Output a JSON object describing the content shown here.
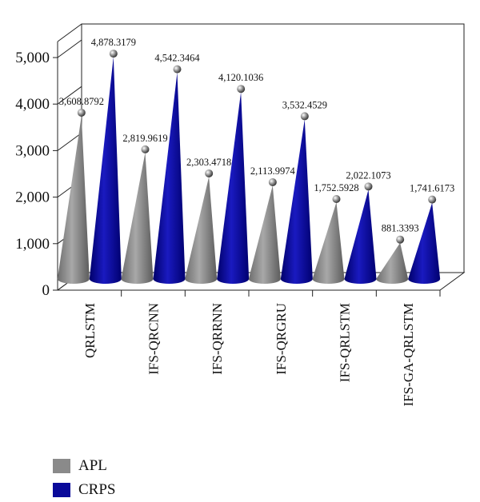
{
  "chart_data": {
    "type": "bar",
    "title": "",
    "xlabel": "",
    "ylabel": "",
    "ylim": [
      0,
      5000
    ],
    "yticks": [
      "0",
      "1,000",
      "2,000",
      "3,000",
      "4,000",
      "5,000"
    ],
    "categories": [
      "QRLSTM",
      "IFS-QRCNN",
      "IFS-QRRNN",
      "IFS-QRGRU",
      "IFS-QRLSTM",
      "IFS-GA-QRLSTM"
    ],
    "series": [
      {
        "name": "APL",
        "color": "#8a8a8a",
        "values": [
          3608.8792,
          2819.9619,
          2303.4718,
          2113.9974,
          1752.5928,
          881.3393
        ],
        "labels": [
          "3,608.8792",
          "2,819.9619",
          "2,303.4718",
          "2,113.9974",
          "1,752.5928",
          "881.3393"
        ]
      },
      {
        "name": "CRPS",
        "color": "#0a0a9a",
        "values": [
          4878.3179,
          4542.3464,
          4120.1036,
          3532.4529,
          2022.1073,
          1741.6173
        ],
        "labels": [
          "4,878.3179",
          "4,542.3464",
          "4,120.1036",
          "3,532.4529",
          "2,022.1073",
          "1,741.6173"
        ]
      }
    ],
    "grid": false,
    "legend_position": "bottom-left",
    "style": "3d-cone"
  }
}
